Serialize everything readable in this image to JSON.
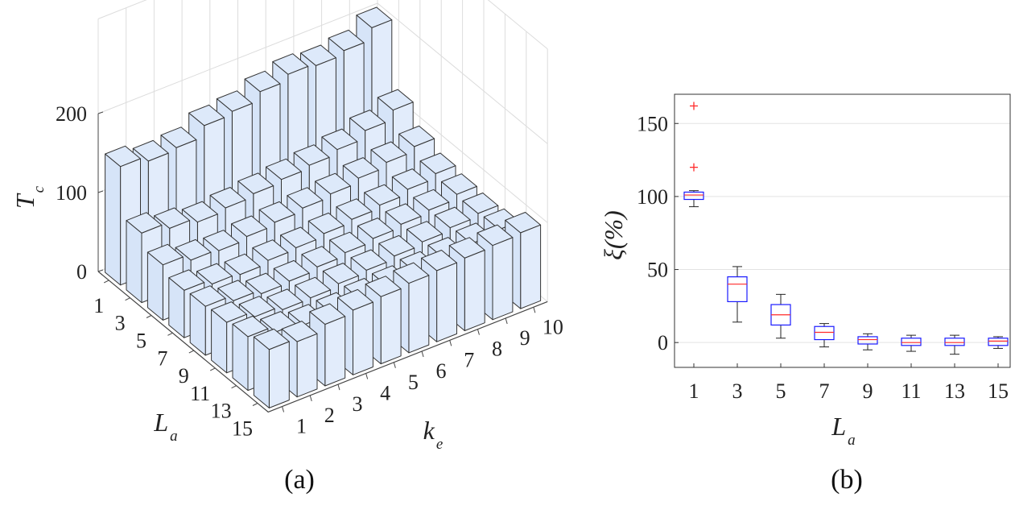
{
  "caption_a": "(a)",
  "caption_b": "(b)",
  "chart_data": [
    {
      "type": "bar3d",
      "zlabel": {
        "main": "T",
        "sub": "c"
      },
      "xlabel": {
        "main": "L",
        "sub": "a"
      },
      "ylabel": {
        "main": "k",
        "sub": "e"
      },
      "z_ticks": [
        "0",
        "100",
        "200"
      ],
      "zlim": [
        0,
        200
      ],
      "La": [
        "1",
        "3",
        "5",
        "7",
        "9",
        "11",
        "13",
        "15"
      ],
      "ke": [
        "1",
        "2",
        "3",
        "4",
        "5",
        "6",
        "7",
        "8",
        "9",
        "10"
      ],
      "values": [
        [
          150,
          143,
          146,
          160,
          164,
          175,
          183,
          180,
          185,
          200
        ],
        [
          88,
          80,
          74,
          78,
          82,
          86,
          90,
          96,
          106,
          118
        ],
        [
          70,
          62,
          60,
          64,
          68,
          72,
          76,
          82,
          88,
          94
        ],
        [
          60,
          54,
          52,
          56,
          58,
          62,
          66,
          70,
          76,
          82
        ],
        [
          62,
          55,
          50,
          52,
          56,
          60,
          64,
          68,
          72,
          78
        ],
        [
          64,
          57,
          52,
          53,
          57,
          60,
          64,
          68,
          72,
          76
        ],
        [
          68,
          60,
          55,
          56,
          60,
          62,
          66,
          70,
          74,
          78
        ],
        [
          74,
          70,
          78,
          82,
          85,
          88,
          90,
          92,
          94,
          96
        ]
      ],
      "grid": true
    },
    {
      "type": "box",
      "xlabel": {
        "main": "L",
        "sub": "a"
      },
      "ylabel": "ξ(%)",
      "categories": [
        "1",
        "3",
        "5",
        "7",
        "9",
        "11",
        "13",
        "15"
      ],
      "y_ticks": [
        0,
        50,
        100,
        150
      ],
      "ylim": [
        -17,
        170
      ],
      "grid": true,
      "box_color": "#1a1aff",
      "median_color": "#ff2a2a",
      "outlier_color": "#ff2a2a",
      "boxes": [
        {
          "min": 93,
          "q1": 98,
          "median": 101,
          "q3": 103,
          "max": 104,
          "outliers": [
            120,
            162
          ]
        },
        {
          "min": 14,
          "q1": 28,
          "median": 40,
          "q3": 45,
          "max": 52,
          "outliers": []
        },
        {
          "min": 3,
          "q1": 12,
          "median": 19,
          "q3": 26,
          "max": 33,
          "outliers": []
        },
        {
          "min": -3,
          "q1": 2,
          "median": 7,
          "q3": 11,
          "max": 13,
          "outliers": []
        },
        {
          "min": -5,
          "q1": -1,
          "median": 2,
          "q3": 4,
          "max": 6,
          "outliers": []
        },
        {
          "min": -6,
          "q1": -2,
          "median": 0,
          "q3": 3,
          "max": 5,
          "outliers": []
        },
        {
          "min": -8,
          "q1": -2,
          "median": 0,
          "q3": 3,
          "max": 5,
          "outliers": []
        },
        {
          "min": -4,
          "q1": -2,
          "median": 1,
          "q3": 3,
          "max": 4,
          "outliers": []
        }
      ]
    }
  ]
}
